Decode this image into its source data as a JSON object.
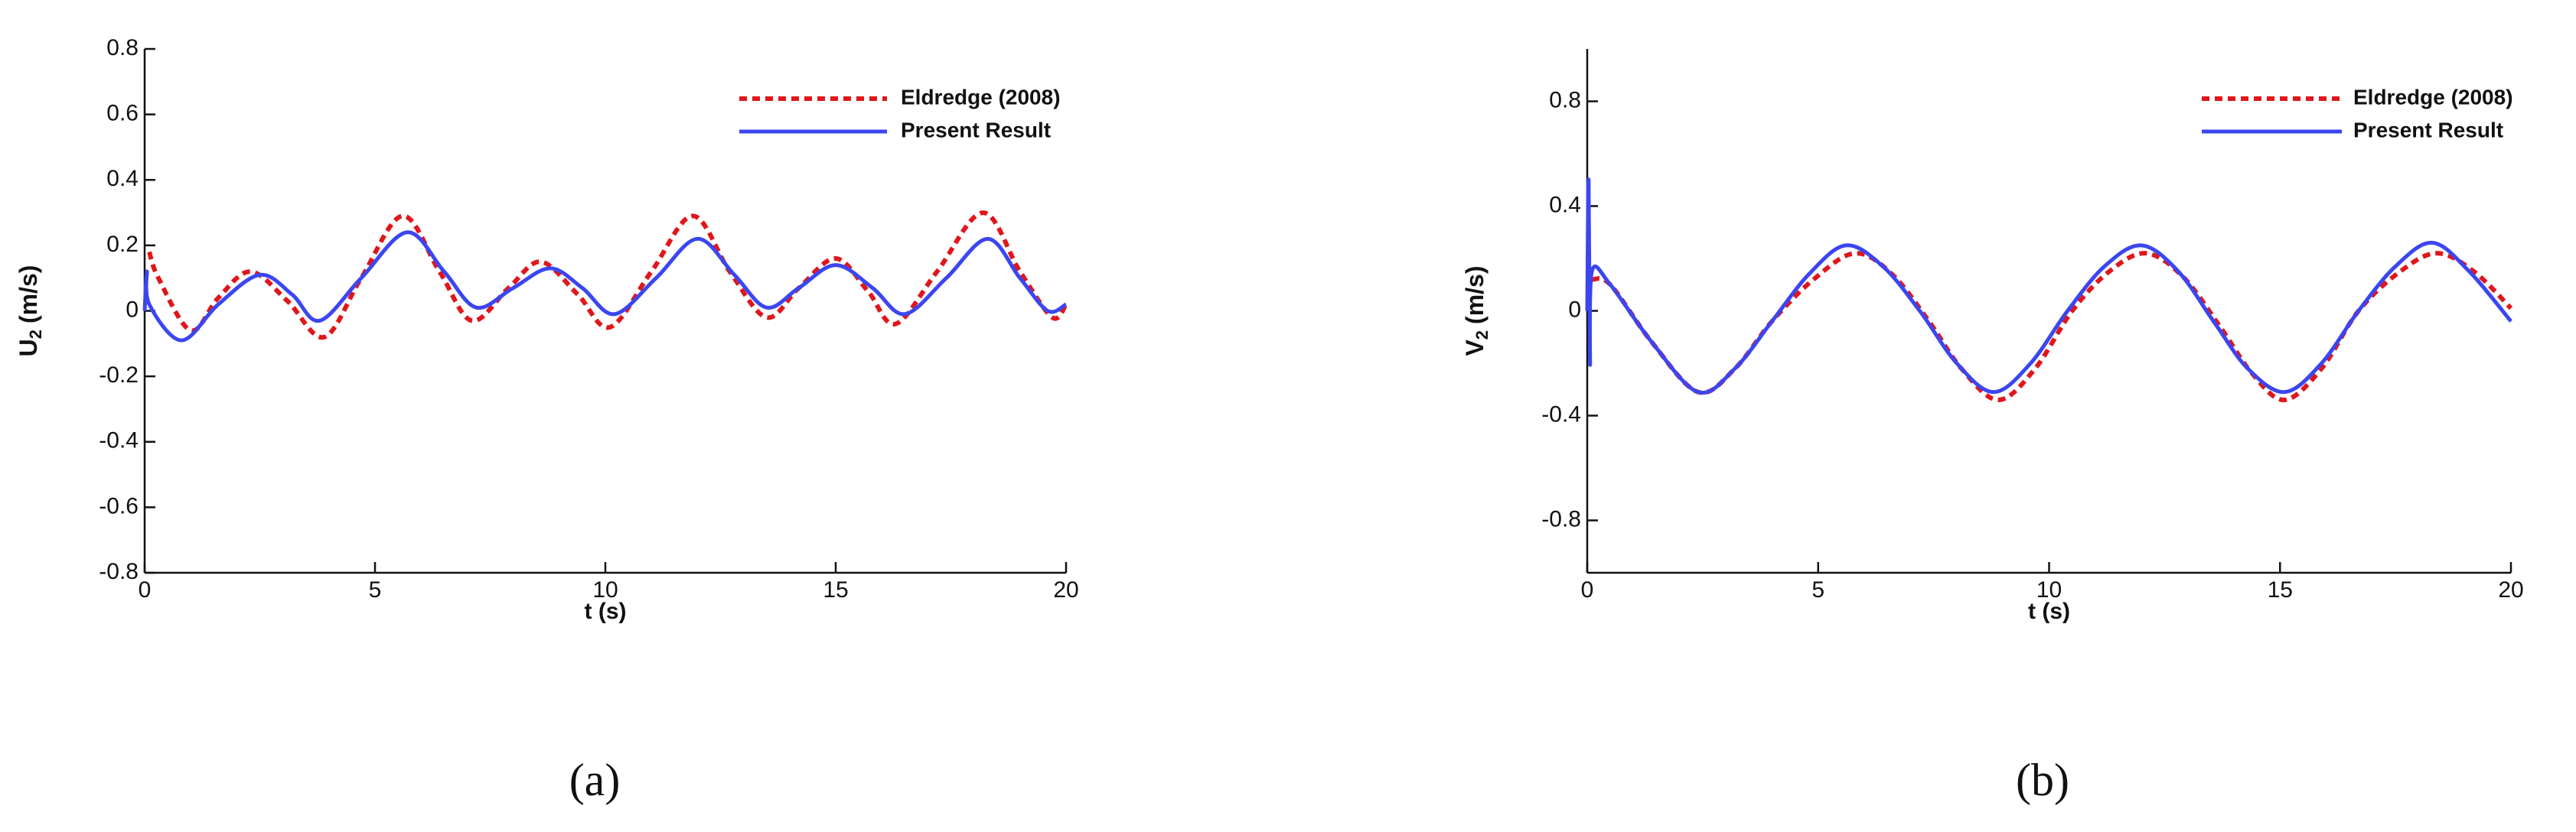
{
  "chart_data": [
    {
      "type": "line",
      "caption": "(a)",
      "xlabel": "t (s)",
      "ylabel": {
        "symbol": "U",
        "sub": "2",
        "unit": "(m/s)"
      },
      "xlim": [
        0,
        20
      ],
      "xticks": [
        0,
        5,
        10,
        15,
        20
      ],
      "ylim": [
        -0.8,
        0.8
      ],
      "yticks": [
        -0.8,
        -0.6,
        -0.4,
        -0.2,
        0,
        0.2,
        0.4,
        0.6,
        0.8
      ],
      "legend": "upper right",
      "series": [
        {
          "name": "Eldredge (2008)",
          "color": "#e0161b",
          "dashed": true,
          "x": [
            0.1,
            0.3,
            1,
            1.6,
            2.3,
            3.1,
            3.9,
            4.7,
            5.6,
            6.4,
            7.1,
            7.9,
            8.6,
            9.4,
            10.1,
            11,
            11.9,
            12.7,
            13.5,
            14.2,
            15,
            15.7,
            16.3,
            17.2,
            18.2,
            19,
            19.7,
            20
          ],
          "values": [
            0.18,
            0.1,
            -0.06,
            0.04,
            0.12,
            0.03,
            -0.08,
            0.1,
            0.29,
            0.12,
            -0.03,
            0.07,
            0.15,
            0.05,
            -0.05,
            0.12,
            0.29,
            0.12,
            -0.02,
            0.07,
            0.16,
            0.06,
            -0.04,
            0.12,
            0.3,
            0.12,
            -0.02,
            0.02
          ]
        },
        {
          "name": "Present Result",
          "color": "#3b46f0",
          "dashed": false,
          "x": [
            0,
            0.05,
            0.1,
            0.8,
            1.6,
            2.5,
            3.2,
            3.8,
            4.7,
            5.7,
            6.5,
            7.2,
            8,
            8.8,
            9.5,
            10.2,
            11.1,
            12,
            12.8,
            13.5,
            14.2,
            15,
            15.8,
            16.5,
            17.4,
            18.3,
            19,
            19.6,
            20
          ],
          "values": [
            0,
            0.12,
            0.02,
            -0.09,
            0.02,
            0.11,
            0.05,
            -0.03,
            0.1,
            0.24,
            0.12,
            0.01,
            0.07,
            0.13,
            0.07,
            -0.01,
            0.1,
            0.22,
            0.11,
            0.01,
            0.07,
            0.14,
            0.07,
            -0.01,
            0.1,
            0.22,
            0.1,
            0,
            0.02
          ]
        }
      ]
    },
    {
      "type": "line",
      "caption": "(b)",
      "xlabel": "t (s)",
      "ylabel": {
        "symbol": "V",
        "sub": "2",
        "unit": "(m/s)"
      },
      "xlim": [
        0,
        20
      ],
      "xticks": [
        0,
        5,
        10,
        15,
        20
      ],
      "ylim": [
        -1,
        1
      ],
      "yticks": [
        -0.8,
        -0.4,
        0,
        0.4,
        0.8
      ],
      "legend": "upper right",
      "series": [
        {
          "name": "Eldredge (2008)",
          "color": "#e0161b",
          "dashed": true,
          "x": [
            0.1,
            0.5,
            1.4,
            2.4,
            3.2,
            4,
            4.9,
            5.8,
            6.6,
            7.4,
            8.1,
            8.9,
            9.7,
            10.5,
            11.3,
            12.1,
            12.9,
            13.7,
            14.4,
            15.1,
            15.9,
            16.7,
            17.6,
            18.4,
            19.2,
            20
          ],
          "values": [
            0.12,
            0.1,
            -0.12,
            -0.31,
            -0.22,
            -0.04,
            0.12,
            0.22,
            0.14,
            -0.04,
            -0.22,
            -0.34,
            -0.22,
            0,
            0.15,
            0.22,
            0.13,
            -0.06,
            -0.24,
            -0.34,
            -0.22,
            0,
            0.15,
            0.22,
            0.15,
            0.01
          ]
        },
        {
          "name": "Present Result",
          "color": "#3b46f0",
          "dashed": false,
          "x": [
            0,
            0.03,
            0.06,
            0.1,
            0.5,
            1.4,
            2.4,
            3.2,
            4,
            4.8,
            5.6,
            6.4,
            7.2,
            8,
            8.8,
            9.6,
            10.4,
            11.2,
            12,
            12.8,
            13.6,
            14.3,
            15.1,
            15.9,
            16.7,
            17.5,
            18.3,
            19.1,
            20
          ],
          "values": [
            0,
            0.5,
            -0.2,
            0.15,
            0.1,
            -0.12,
            -0.31,
            -0.22,
            -0.04,
            0.14,
            0.25,
            0.17,
            0,
            -0.2,
            -0.31,
            -0.2,
            0,
            0.17,
            0.25,
            0.15,
            -0.05,
            -0.22,
            -0.31,
            -0.2,
            0,
            0.17,
            0.26,
            0.15,
            -0.04
          ]
        }
      ]
    }
  ]
}
